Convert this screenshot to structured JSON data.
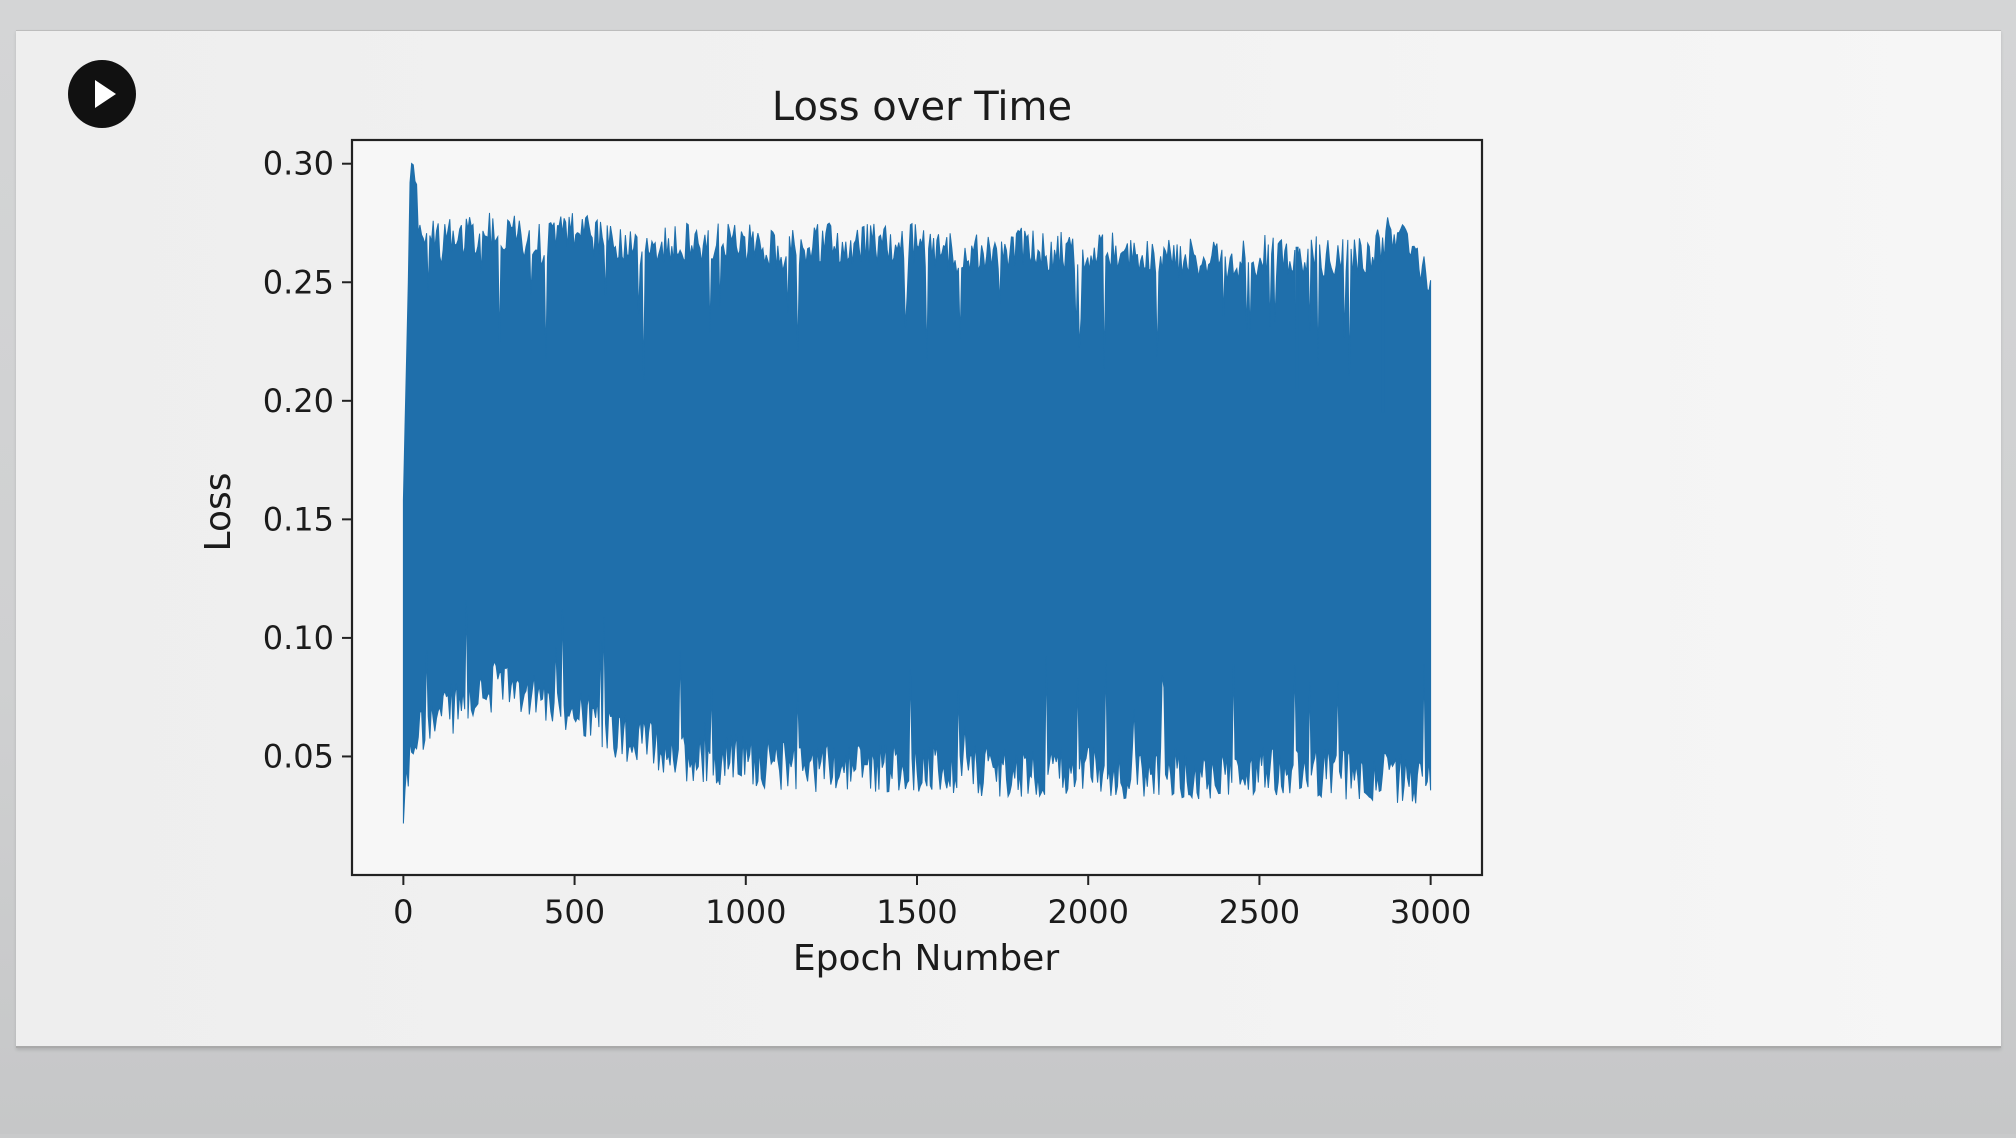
{
  "cell": {
    "run_icon": "play-icon"
  },
  "colors": {
    "series": "#1f6fab",
    "axis": "#222222",
    "background": "#f2f2f2"
  },
  "chart_data": {
    "type": "line",
    "title": "Loss over Time",
    "xlabel": "Epoch Number",
    "ylabel": "Loss",
    "xlim": [
      -150,
      3150
    ],
    "ylim": [
      0.0,
      0.31
    ],
    "x_ticks": [
      0,
      500,
      1000,
      1500,
      2000,
      2500,
      3000
    ],
    "x_tick_labels": [
      "0",
      "500",
      "1000",
      "1500",
      "2000",
      "2500",
      "3000"
    ],
    "y_ticks": [
      0.05,
      0.1,
      0.15,
      0.2,
      0.25,
      0.3
    ],
    "y_tick_labels": [
      "0.05",
      "0.10",
      "0.15",
      "0.20",
      "0.25",
      "0.30"
    ],
    "grid": false,
    "legend": "none",
    "series": [
      {
        "color": "#1f6fab",
        "description_of_shape": "dense oscillation between an upper and lower envelope",
        "x_range": [
          0,
          3000
        ],
        "upper_envelope": {
          "x": [
            0,
            20,
            30,
            50,
            100,
            200,
            300,
            400,
            500,
            600,
            700,
            800,
            900,
            1000,
            1100,
            1200,
            1300,
            1400,
            1500,
            1600,
            1700,
            1800,
            1900,
            2000,
            2100,
            2200,
            2300,
            2400,
            2500,
            2600,
            2700,
            2800,
            2900,
            2950,
            3000
          ],
          "y": [
            0.17,
            0.3,
            0.305,
            0.28,
            0.275,
            0.28,
            0.28,
            0.275,
            0.28,
            0.275,
            0.275,
            0.275,
            0.275,
            0.275,
            0.272,
            0.275,
            0.275,
            0.275,
            0.275,
            0.272,
            0.27,
            0.275,
            0.272,
            0.27,
            0.272,
            0.27,
            0.27,
            0.268,
            0.27,
            0.27,
            0.27,
            0.27,
            0.28,
            0.27,
            0.26
          ]
        },
        "lower_envelope": {
          "x": [
            0,
            20,
            50,
            100,
            200,
            300,
            400,
            500,
            600,
            700,
            800,
            900,
            1000,
            1100,
            1200,
            1300,
            1400,
            1500,
            1600,
            1700,
            1800,
            1900,
            2000,
            2100,
            2200,
            2300,
            2400,
            2500,
            2600,
            2700,
            2800,
            2900,
            2950,
            3000
          ],
          "y": [
            0.015,
            0.04,
            0.05,
            0.055,
            0.065,
            0.07,
            0.065,
            0.058,
            0.05,
            0.045,
            0.04,
            0.038,
            0.038,
            0.035,
            0.035,
            0.035,
            0.035,
            0.035,
            0.033,
            0.033,
            0.033,
            0.033,
            0.033,
            0.032,
            0.032,
            0.032,
            0.032,
            0.032,
            0.032,
            0.032,
            0.03,
            0.03,
            0.028,
            0.03
          ]
        }
      }
    ]
  }
}
